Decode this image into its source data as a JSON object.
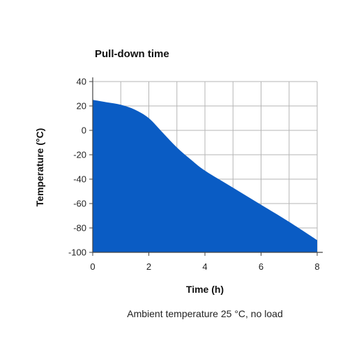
{
  "chart_data": {
    "type": "area",
    "title": "Pull-down time",
    "xlabel": "Time (h)",
    "ylabel": "Temperature (°C)",
    "caption": "Ambient temperature 25 °C, no load",
    "xlim": [
      0,
      8
    ],
    "ylim": [
      -100,
      40
    ],
    "x_ticks": [
      0,
      2,
      4,
      6,
      8
    ],
    "y_ticks": [
      40,
      20,
      0,
      -20,
      -40,
      -60,
      -80,
      -100
    ],
    "x_grid_step": 1,
    "grid": true,
    "colors": {
      "area": "#0a5cc4",
      "grid": "#b5b5b5",
      "axis": "#444444"
    },
    "series": [
      {
        "x": [
          0,
          0.5,
          1,
          1.5,
          2,
          2.5,
          3,
          3.5,
          4,
          5,
          6,
          7,
          8
        ],
        "y": [
          25,
          23,
          21,
          17,
          10,
          -2,
          -14,
          -24,
          -33,
          -47,
          -61,
          -75,
          -90
        ]
      }
    ]
  }
}
